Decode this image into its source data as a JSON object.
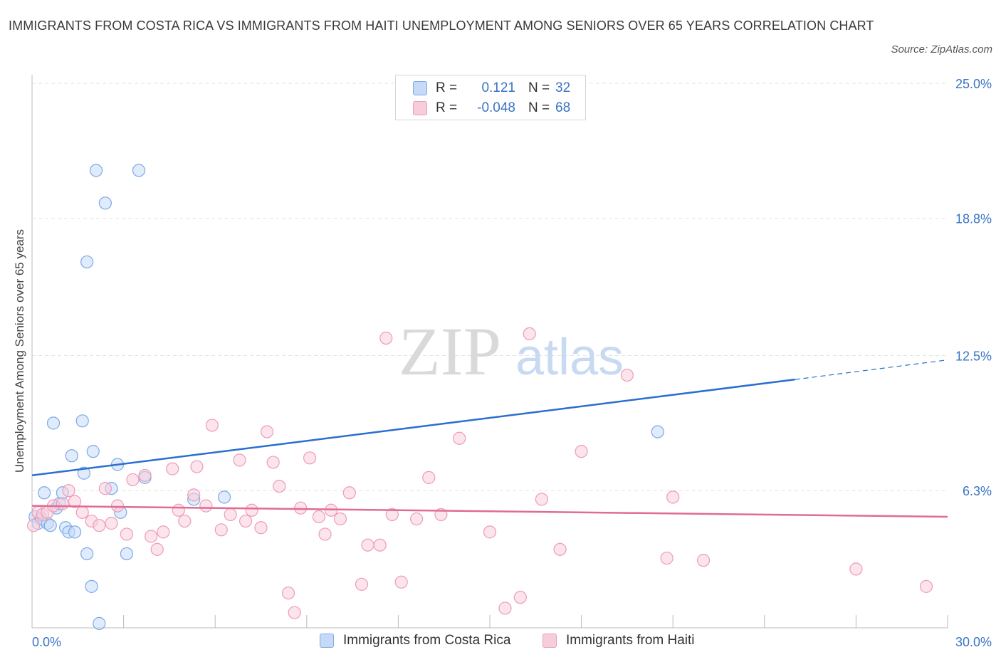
{
  "header": {
    "title": "IMMIGRANTS FROM COSTA RICA VS IMMIGRANTS FROM HAITI UNEMPLOYMENT AMONG SENIORS OVER 65 YEARS CORRELATION CHART",
    "source": "Source: ZipAtlas.com"
  },
  "colors": {
    "series_a": "#7aaae8",
    "series_a_fill": "#c6daf7",
    "series_a_line": "#2a6fce",
    "series_b": "#ef9bb6",
    "series_b_fill": "#f8cdda",
    "series_b_line": "#e06b94",
    "tick_label": "#3b73c4",
    "grid": "#e3e3e3"
  },
  "legend": {
    "rows": [
      {
        "r_label": "R =",
        "r_value": "0.121",
        "n_label": "N =",
        "n_value": "32"
      },
      {
        "r_label": "R =",
        "r_value": "-0.048",
        "n_label": "N =",
        "n_value": "68"
      }
    ]
  },
  "watermark": {
    "zip": "ZIP",
    "atlas": "atlas"
  },
  "chart_data": {
    "type": "scatter",
    "title": "IMMIGRANTS FROM COSTA RICA VS IMMIGRANTS FROM HAITI UNEMPLOYMENT AMONG SENIORS OVER 65 YEARS CORRELATION CHART",
    "xlabel": "",
    "ylabel": "Unemployment Among Seniors over 65 years",
    "xlim": [
      0,
      30
    ],
    "ylim": [
      0,
      25
    ],
    "x_tick_labels": [
      "0.0%",
      "30.0%"
    ],
    "y_ticks": [
      6.3,
      12.5,
      18.8,
      25.0
    ],
    "y_tick_labels": [
      "6.3%",
      "12.5%",
      "18.8%",
      "25.0%"
    ],
    "grid": true,
    "legend_position": "top-center",
    "series": [
      {
        "name": "Immigrants from Costa Rica",
        "R": 0.121,
        "N": 32,
        "trend": {
          "x": [
            0,
            25
          ],
          "y": [
            7.0,
            11.4
          ],
          "dashed_extension": {
            "x": [
              25,
              30
            ],
            "y": [
              11.4,
              12.3
            ]
          }
        },
        "points": [
          [
            0.1,
            5.1
          ],
          [
            0.2,
            4.8
          ],
          [
            0.3,
            5.0
          ],
          [
            0.4,
            6.2
          ],
          [
            0.5,
            4.8
          ],
          [
            0.6,
            4.7
          ],
          [
            0.7,
            9.4
          ],
          [
            0.8,
            5.5
          ],
          [
            0.9,
            5.7
          ],
          [
            1.0,
            6.2
          ],
          [
            1.1,
            4.6
          ],
          [
            1.2,
            4.4
          ],
          [
            1.3,
            7.9
          ],
          [
            1.4,
            4.4
          ],
          [
            1.65,
            9.5
          ],
          [
            1.7,
            7.1
          ],
          [
            1.8,
            3.4
          ],
          [
            1.95,
            1.9
          ],
          [
            2.0,
            8.1
          ],
          [
            2.1,
            21.0
          ],
          [
            2.2,
            0.2
          ],
          [
            2.4,
            19.5
          ],
          [
            1.8,
            16.8
          ],
          [
            2.6,
            6.4
          ],
          [
            2.8,
            7.5
          ],
          [
            2.9,
            5.3
          ],
          [
            3.1,
            3.4
          ],
          [
            3.5,
            21.0
          ],
          [
            5.3,
            5.9
          ],
          [
            6.3,
            6.0
          ],
          [
            20.5,
            9.0
          ],
          [
            3.7,
            6.9
          ]
        ]
      },
      {
        "name": "Immigrants from Haiti",
        "R": -0.048,
        "N": 68,
        "trend": {
          "x": [
            0,
            30
          ],
          "y": [
            5.6,
            5.1
          ]
        },
        "points": [
          [
            0.05,
            4.7
          ],
          [
            0.2,
            5.3
          ],
          [
            0.35,
            5.2
          ],
          [
            0.5,
            5.3
          ],
          [
            0.7,
            5.6
          ],
          [
            1.0,
            5.7
          ],
          [
            1.2,
            6.3
          ],
          [
            1.4,
            5.8
          ],
          [
            1.65,
            5.3
          ],
          [
            1.95,
            4.9
          ],
          [
            2.2,
            4.7
          ],
          [
            2.4,
            6.4
          ],
          [
            2.6,
            4.8
          ],
          [
            2.8,
            5.6
          ],
          [
            3.1,
            4.3
          ],
          [
            3.3,
            6.8
          ],
          [
            3.7,
            7.0
          ],
          [
            3.9,
            4.2
          ],
          [
            4.1,
            3.6
          ],
          [
            4.3,
            4.4
          ],
          [
            4.6,
            7.3
          ],
          [
            4.8,
            5.4
          ],
          [
            5.0,
            4.9
          ],
          [
            5.3,
            6.1
          ],
          [
            5.4,
            7.4
          ],
          [
            5.7,
            5.6
          ],
          [
            5.9,
            9.3
          ],
          [
            6.2,
            4.5
          ],
          [
            6.5,
            5.2
          ],
          [
            6.8,
            7.7
          ],
          [
            7.0,
            4.9
          ],
          [
            7.2,
            5.4
          ],
          [
            7.5,
            4.6
          ],
          [
            7.7,
            9.0
          ],
          [
            7.9,
            7.6
          ],
          [
            8.1,
            6.5
          ],
          [
            8.4,
            1.6
          ],
          [
            8.6,
            0.7
          ],
          [
            8.8,
            5.5
          ],
          [
            9.1,
            7.8
          ],
          [
            9.4,
            5.1
          ],
          [
            9.6,
            4.3
          ],
          [
            9.8,
            5.4
          ],
          [
            10.1,
            5.0
          ],
          [
            10.4,
            6.2
          ],
          [
            10.8,
            2.0
          ],
          [
            11.0,
            3.8
          ],
          [
            11.4,
            3.8
          ],
          [
            11.6,
            13.3
          ],
          [
            11.8,
            5.2
          ],
          [
            12.1,
            2.1
          ],
          [
            12.6,
            5.0
          ],
          [
            13.0,
            6.9
          ],
          [
            13.4,
            5.2
          ],
          [
            14.0,
            8.7
          ],
          [
            15.0,
            4.4
          ],
          [
            15.5,
            0.9
          ],
          [
            16.0,
            1.4
          ],
          [
            16.3,
            13.5
          ],
          [
            16.7,
            5.9
          ],
          [
            17.3,
            3.6
          ],
          [
            18.0,
            8.1
          ],
          [
            19.5,
            11.6
          ],
          [
            20.8,
            3.2
          ],
          [
            21.0,
            6.0
          ],
          [
            22.0,
            3.1
          ],
          [
            27.0,
            2.7
          ],
          [
            29.3,
            1.9
          ]
        ]
      }
    ]
  }
}
